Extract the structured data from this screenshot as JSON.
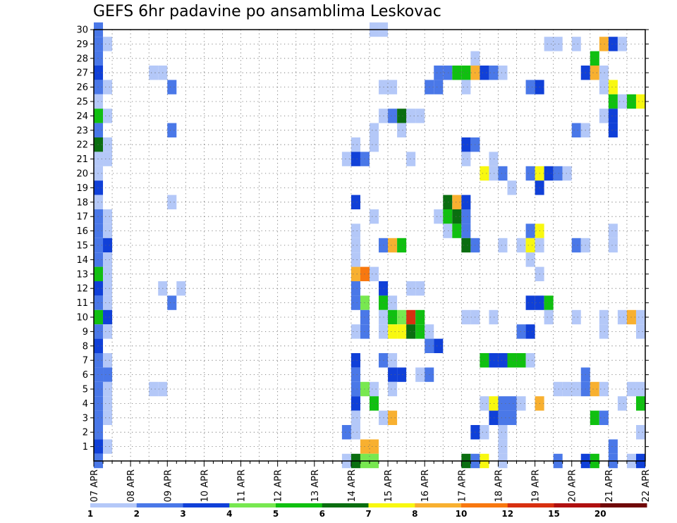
{
  "chart_data": {
    "type": "heatmap",
    "title": "GEFS 6hr padavine po ansamblima Leskovac",
    "xlabel": "",
    "ylabel": "",
    "x_ticks": [
      "07 APR",
      "08 APR",
      "09 APR",
      "10 APR",
      "11 APR",
      "12 APR",
      "13 APR",
      "14 APR",
      "15 APR",
      "16 APR",
      "17 APR",
      "18 APR",
      "19 APR",
      "20 APR",
      "21 APR",
      "22 APR"
    ],
    "x_step": "6hr",
    "y_ticks": [
      1,
      2,
      3,
      4,
      5,
      6,
      7,
      8,
      9,
      10,
      11,
      12,
      13,
      14,
      15,
      16,
      17,
      18,
      19,
      20,
      21,
      22,
      23,
      24,
      25,
      26,
      27,
      28,
      29,
      30
    ],
    "y_range": [
      0,
      30
    ],
    "grid": true,
    "legend": {
      "position": "bottom",
      "labels": [
        "1",
        "2",
        "3",
        "4",
        "5",
        "6",
        "7",
        "8",
        "10",
        "12",
        "15",
        "20"
      ],
      "colors": [
        "#b4c8f8",
        "#4a78e8",
        "#1040d8",
        "#78e850",
        "#10c010",
        "#0a6e10",
        "#f8f810",
        "#f8b030",
        "#f87810",
        "#d83010",
        "#b01010",
        "#700808"
      ]
    },
    "cells": [
      [
        "07 APR 00Z",
        30,
        2
      ],
      [
        "07 APR 00Z",
        29,
        2
      ],
      [
        "07 APR 00Z",
        28,
        2
      ],
      [
        "07 APR 00Z",
        27,
        3
      ],
      [
        "07 APR 00Z",
        26,
        2
      ],
      [
        "07 APR 00Z",
        25,
        1
      ],
      [
        "07 APR 00Z",
        24,
        5
      ],
      [
        "07 APR 00Z",
        23,
        2
      ],
      [
        "07 APR 00Z",
        22,
        6
      ],
      [
        "07 APR 00Z",
        21,
        1
      ],
      [
        "07 APR 00Z",
        20,
        1
      ],
      [
        "07 APR 00Z",
        19,
        3
      ],
      [
        "07 APR 00Z",
        18,
        1
      ],
      [
        "07 APR 00Z",
        17,
        2
      ],
      [
        "07 APR 00Z",
        16,
        2
      ],
      [
        "07 APR 00Z",
        15,
        2
      ],
      [
        "07 APR 00Z",
        14,
        2
      ],
      [
        "07 APR 00Z",
        13,
        5
      ],
      [
        "07 APR 00Z",
        12,
        3
      ],
      [
        "07 APR 00Z",
        11,
        2
      ],
      [
        "07 APR 00Z",
        10,
        5
      ],
      [
        "07 APR 00Z",
        9,
        2
      ],
      [
        "07 APR 00Z",
        8,
        3
      ],
      [
        "07 APR 00Z",
        7,
        2
      ],
      [
        "07 APR 00Z",
        6,
        2
      ],
      [
        "07 APR 00Z",
        5,
        2
      ],
      [
        "07 APR 00Z",
        4,
        2
      ],
      [
        "07 APR 00Z",
        3,
        2
      ],
      [
        "07 APR 00Z",
        2,
        2
      ],
      [
        "07 APR 00Z",
        1,
        3
      ],
      [
        "07 APR 00Z",
        0,
        2
      ],
      [
        "07 APR 06Z",
        29,
        1
      ],
      [
        "07 APR 06Z",
        26,
        1
      ],
      [
        "07 APR 06Z",
        24,
        1
      ],
      [
        "07 APR 06Z",
        22,
        1
      ],
      [
        "07 APR 06Z",
        21,
        1
      ],
      [
        "07 APR 06Z",
        17,
        1
      ],
      [
        "07 APR 06Z",
        16,
        1
      ],
      [
        "07 APR 06Z",
        15,
        3
      ],
      [
        "07 APR 06Z",
        14,
        1
      ],
      [
        "07 APR 06Z",
        13,
        1
      ],
      [
        "07 APR 06Z",
        12,
        1
      ],
      [
        "07 APR 06Z",
        11,
        1
      ],
      [
        "07 APR 06Z",
        10,
        3
      ],
      [
        "07 APR 06Z",
        9,
        1
      ],
      [
        "07 APR 06Z",
        7,
        1
      ],
      [
        "07 APR 06Z",
        6,
        2
      ],
      [
        "07 APR 06Z",
        5,
        1
      ],
      [
        "07 APR 06Z",
        4,
        1
      ],
      [
        "07 APR 06Z",
        3,
        1
      ],
      [
        "07 APR 06Z",
        1,
        1
      ],
      [
        "08 APR 12Z",
        27,
        1
      ],
      [
        "08 APR 12Z",
        5,
        1
      ],
      [
        "08 APR 18Z",
        27,
        1
      ],
      [
        "08 APR 18Z",
        12,
        1
      ],
      [
        "08 APR 18Z",
        5,
        1
      ],
      [
        "09 APR 00Z",
        26,
        2
      ],
      [
        "09 APR 00Z",
        23,
        2
      ],
      [
        "09 APR 00Z",
        18,
        1
      ],
      [
        "09 APR 00Z",
        11,
        2
      ],
      [
        "09 APR 06Z",
        12,
        1
      ],
      [
        "13 APR 18Z",
        21,
        1
      ],
      [
        "13 APR 18Z",
        2,
        2
      ],
      [
        "13 APR 18Z",
        0,
        1
      ],
      [
        "14 APR 00Z",
        22,
        1
      ],
      [
        "14 APR 00Z",
        21,
        3
      ],
      [
        "14 APR 00Z",
        18,
        3
      ],
      [
        "14 APR 00Z",
        16,
        1
      ],
      [
        "14 APR 00Z",
        15,
        1
      ],
      [
        "14 APR 00Z",
        14,
        1
      ],
      [
        "14 APR 00Z",
        13,
        8
      ],
      [
        "14 APR 00Z",
        12,
        2
      ],
      [
        "14 APR 00Z",
        11,
        2
      ],
      [
        "14 APR 00Z",
        9,
        1
      ],
      [
        "14 APR 00Z",
        7,
        3
      ],
      [
        "14 APR 00Z",
        6,
        2
      ],
      [
        "14 APR 00Z",
        5,
        2
      ],
      [
        "14 APR 00Z",
        4,
        3
      ],
      [
        "14 APR 00Z",
        3,
        1
      ],
      [
        "14 APR 00Z",
        2,
        1
      ],
      [
        "14 APR 00Z",
        0,
        6
      ],
      [
        "14 APR 06Z",
        21,
        2
      ],
      [
        "14 APR 06Z",
        13,
        9
      ],
      [
        "14 APR 06Z",
        11,
        4
      ],
      [
        "14 APR 06Z",
        10,
        2
      ],
      [
        "14 APR 06Z",
        9,
        2
      ],
      [
        "14 APR 06Z",
        5,
        4
      ],
      [
        "14 APR 06Z",
        1,
        8
      ],
      [
        "14 APR 06Z",
        0,
        4
      ],
      [
        "14 APR 12Z",
        30,
        1
      ],
      [
        "14 APR 12Z",
        23,
        1
      ],
      [
        "14 APR 12Z",
        22,
        1
      ],
      [
        "14 APR 12Z",
        17,
        1
      ],
      [
        "14 APR 12Z",
        13,
        1
      ],
      [
        "14 APR 12Z",
        5,
        1
      ],
      [
        "14 APR 12Z",
        4,
        5
      ],
      [
        "14 APR 12Z",
        1,
        8
      ],
      [
        "14 APR 12Z",
        0,
        4
      ],
      [
        "14 APR 18Z",
        30,
        1
      ],
      [
        "14 APR 18Z",
        26,
        1
      ],
      [
        "14 APR 18Z",
        24,
        1
      ],
      [
        "14 APR 18Z",
        15,
        2
      ],
      [
        "14 APR 18Z",
        12,
        3
      ],
      [
        "14 APR 18Z",
        11,
        5
      ],
      [
        "14 APR 18Z",
        10,
        1
      ],
      [
        "14 APR 18Z",
        9,
        1
      ],
      [
        "14 APR 18Z",
        7,
        2
      ],
      [
        "14 APR 18Z",
        3,
        1
      ],
      [
        "15 APR 00Z",
        26,
        1
      ],
      [
        "15 APR 00Z",
        24,
        2
      ],
      [
        "15 APR 00Z",
        15,
        8
      ],
      [
        "15 APR 00Z",
        11,
        1
      ],
      [
        "15 APR 00Z",
        10,
        5
      ],
      [
        "15 APR 00Z",
        9,
        7
      ],
      [
        "15 APR 00Z",
        7,
        1
      ],
      [
        "15 APR 00Z",
        6,
        3
      ],
      [
        "15 APR 00Z",
        5,
        1
      ],
      [
        "15 APR 00Z",
        3,
        8
      ],
      [
        "15 APR 06Z",
        24,
        6
      ],
      [
        "15 APR 06Z",
        23,
        1
      ],
      [
        "15 APR 06Z",
        15,
        5
      ],
      [
        "15 APR 06Z",
        10,
        4
      ],
      [
        "15 APR 06Z",
        9,
        7
      ],
      [
        "15 APR 06Z",
        6,
        3
      ],
      [
        "15 APR 12Z",
        24,
        1
      ],
      [
        "15 APR 12Z",
        21,
        1
      ],
      [
        "15 APR 12Z",
        12,
        1
      ],
      [
        "15 APR 12Z",
        10,
        10
      ],
      [
        "15 APR 12Z",
        9,
        6
      ],
      [
        "15 APR 18Z",
        24,
        1
      ],
      [
        "15 APR 18Z",
        12,
        1
      ],
      [
        "15 APR 18Z",
        10,
        5
      ],
      [
        "15 APR 18Z",
        9,
        5
      ],
      [
        "15 APR 18Z",
        6,
        1
      ],
      [
        "16 APR 00Z",
        26,
        2
      ],
      [
        "16 APR 00Z",
        9,
        1
      ],
      [
        "16 APR 00Z",
        8,
        2
      ],
      [
        "16 APR 00Z",
        6,
        2
      ],
      [
        "16 APR 06Z",
        27,
        2
      ],
      [
        "16 APR 06Z",
        26,
        2
      ],
      [
        "16 APR 06Z",
        17,
        1
      ],
      [
        "16 APR 06Z",
        8,
        3
      ],
      [
        "16 APR 12Z",
        27,
        2
      ],
      [
        "16 APR 12Z",
        18,
        6
      ],
      [
        "16 APR 12Z",
        17,
        5
      ],
      [
        "16 APR 12Z",
        16,
        1
      ],
      [
        "16 APR 18Z",
        27,
        5
      ],
      [
        "16 APR 18Z",
        18,
        8
      ],
      [
        "16 APR 18Z",
        17,
        6
      ],
      [
        "16 APR 18Z",
        16,
        5
      ],
      [
        "17 APR 00Z",
        27,
        5
      ],
      [
        "17 APR 00Z",
        26,
        1
      ],
      [
        "17 APR 00Z",
        22,
        3
      ],
      [
        "17 APR 00Z",
        21,
        1
      ],
      [
        "17 APR 00Z",
        18,
        3
      ],
      [
        "17 APR 00Z",
        17,
        2
      ],
      [
        "17 APR 00Z",
        16,
        2
      ],
      [
        "17 APR 00Z",
        15,
        6
      ],
      [
        "17 APR 00Z",
        10,
        1
      ],
      [
        "17 APR 00Z",
        0,
        6
      ],
      [
        "17 APR 06Z",
        28,
        1
      ],
      [
        "17 APR 06Z",
        27,
        8
      ],
      [
        "17 APR 06Z",
        22,
        2
      ],
      [
        "17 APR 06Z",
        15,
        2
      ],
      [
        "17 APR 06Z",
        10,
        1
      ],
      [
        "17 APR 06Z",
        2,
        3
      ],
      [
        "17 APR 06Z",
        0,
        2
      ],
      [
        "17 APR 12Z",
        27,
        3
      ],
      [
        "17 APR 12Z",
        20,
        7
      ],
      [
        "17 APR 12Z",
        7,
        5
      ],
      [
        "17 APR 12Z",
        4,
        1
      ],
      [
        "17 APR 12Z",
        2,
        1
      ],
      [
        "17 APR 12Z",
        0,
        7
      ],
      [
        "17 APR 18Z",
        27,
        2
      ],
      [
        "17 APR 18Z",
        21,
        1
      ],
      [
        "17 APR 18Z",
        20,
        1
      ],
      [
        "17 APR 18Z",
        10,
        1
      ],
      [
        "17 APR 18Z",
        7,
        3
      ],
      [
        "17 APR 18Z",
        4,
        7
      ],
      [
        "17 APR 18Z",
        3,
        3
      ],
      [
        "18 APR 00Z",
        27,
        1
      ],
      [
        "18 APR 00Z",
        20,
        2
      ],
      [
        "18 APR 00Z",
        15,
        1
      ],
      [
        "18 APR 00Z",
        7,
        3
      ],
      [
        "18 APR 00Z",
        4,
        2
      ],
      [
        "18 APR 00Z",
        3,
        2
      ],
      [
        "18 APR 00Z",
        2,
        1
      ],
      [
        "18 APR 00Z",
        1,
        1
      ],
      [
        "18 APR 00Z",
        0,
        1
      ],
      [
        "18 APR 06Z",
        19,
        1
      ],
      [
        "18 APR 06Z",
        7,
        5
      ],
      [
        "18 APR 06Z",
        4,
        2
      ],
      [
        "18 APR 06Z",
        3,
        2
      ],
      [
        "18 APR 12Z",
        15,
        1
      ],
      [
        "18 APR 12Z",
        9,
        2
      ],
      [
        "18 APR 12Z",
        7,
        5
      ],
      [
        "18 APR 12Z",
        4,
        1
      ],
      [
        "18 APR 18Z",
        26,
        2
      ],
      [
        "18 APR 18Z",
        20,
        2
      ],
      [
        "18 APR 18Z",
        16,
        2
      ],
      [
        "18 APR 18Z",
        15,
        7
      ],
      [
        "18 APR 18Z",
        14,
        1
      ],
      [
        "18 APR 18Z",
        11,
        3
      ],
      [
        "18 APR 18Z",
        9,
        3
      ],
      [
        "18 APR 18Z",
        7,
        1
      ],
      [
        "19 APR 00Z",
        26,
        3
      ],
      [
        "19 APR 00Z",
        20,
        7
      ],
      [
        "19 APR 00Z",
        19,
        3
      ],
      [
        "19 APR 00Z",
        16,
        7
      ],
      [
        "19 APR 00Z",
        15,
        1
      ],
      [
        "19 APR 00Z",
        13,
        1
      ],
      [
        "19 APR 00Z",
        11,
        3
      ],
      [
        "19 APR 00Z",
        4,
        8
      ],
      [
        "19 APR 06Z",
        29,
        1
      ],
      [
        "19 APR 06Z",
        20,
        3
      ],
      [
        "19 APR 06Z",
        11,
        5
      ],
      [
        "19 APR 06Z",
        10,
        1
      ],
      [
        "19 APR 12Z",
        29,
        1
      ],
      [
        "19 APR 12Z",
        20,
        2
      ],
      [
        "19 APR 12Z",
        5,
        1
      ],
      [
        "19 APR 12Z",
        0,
        2
      ],
      [
        "19 APR 18Z",
        20,
        1
      ],
      [
        "19 APR 18Z",
        5,
        1
      ],
      [
        "20 APR 00Z",
        29,
        1
      ],
      [
        "20 APR 00Z",
        23,
        2
      ],
      [
        "20 APR 00Z",
        15,
        2
      ],
      [
        "20 APR 00Z",
        10,
        1
      ],
      [
        "20 APR 00Z",
        5,
        1
      ],
      [
        "20 APR 06Z",
        27,
        3
      ],
      [
        "20 APR 06Z",
        23,
        1
      ],
      [
        "20 APR 06Z",
        15,
        1
      ],
      [
        "20 APR 06Z",
        6,
        2
      ],
      [
        "20 APR 06Z",
        5,
        2
      ],
      [
        "20 APR 06Z",
        0,
        3
      ],
      [
        "20 APR 12Z",
        28,
        5
      ],
      [
        "20 APR 12Z",
        27,
        8
      ],
      [
        "20 APR 12Z",
        5,
        8
      ],
      [
        "20 APR 12Z",
        3,
        5
      ],
      [
        "20 APR 12Z",
        0,
        5
      ],
      [
        "20 APR 18Z",
        29,
        8
      ],
      [
        "20 APR 18Z",
        27,
        1
      ],
      [
        "20 APR 18Z",
        26,
        1
      ],
      [
        "20 APR 18Z",
        24,
        1
      ],
      [
        "20 APR 18Z",
        10,
        1
      ],
      [
        "20 APR 18Z",
        9,
        1
      ],
      [
        "20 APR 18Z",
        5,
        1
      ],
      [
        "20 APR 18Z",
        3,
        2
      ],
      [
        "21 APR 00Z",
        29,
        3
      ],
      [
        "21 APR 00Z",
        26,
        7
      ],
      [
        "21 APR 00Z",
        25,
        5
      ],
      [
        "21 APR 00Z",
        24,
        3
      ],
      [
        "21 APR 00Z",
        23,
        3
      ],
      [
        "21 APR 00Z",
        16,
        1
      ],
      [
        "21 APR 00Z",
        15,
        1
      ],
      [
        "21 APR 00Z",
        1,
        2
      ],
      [
        "21 APR 00Z",
        0,
        2
      ],
      [
        "21 APR 06Z",
        29,
        1
      ],
      [
        "21 APR 06Z",
        25,
        1
      ],
      [
        "21 APR 06Z",
        10,
        1
      ],
      [
        "21 APR 06Z",
        4,
        1
      ],
      [
        "21 APR 12Z",
        25,
        5
      ],
      [
        "21 APR 12Z",
        10,
        8
      ],
      [
        "21 APR 12Z",
        5,
        1
      ],
      [
        "21 APR 12Z",
        0,
        1
      ],
      [
        "21 APR 18Z",
        25,
        7
      ],
      [
        "21 APR 18Z",
        10,
        1
      ],
      [
        "21 APR 18Z",
        9,
        1
      ],
      [
        "21 APR 18Z",
        5,
        1
      ],
      [
        "21 APR 18Z",
        4,
        5
      ],
      [
        "21 APR 18Z",
        2,
        1
      ],
      [
        "21 APR 18Z",
        0,
        3
      ],
      [
        "22 APR 00Z",
        23,
        3
      ],
      [
        "22 APR 00Z",
        22,
        3
      ],
      [
        "22 APR 00Z",
        20,
        2
      ],
      [
        "22 APR 00Z",
        15,
        1
      ],
      [
        "22 APR 00Z",
        4,
        1
      ],
      [
        "22 APR 00Z",
        2,
        1
      ],
      [
        "22 APR 00Z",
        1,
        2
      ],
      [
        "22 APR 00Z",
        0,
        3
      ],
      [
        "22 APR 06Z",
        29,
        3
      ],
      [
        "22 APR 06Z",
        20,
        2
      ],
      [
        "22 APR 06Z",
        19,
        3
      ],
      [
        "22 APR 06Z",
        15,
        2
      ],
      [
        "22 APR 06Z",
        0,
        3
      ]
    ]
  }
}
